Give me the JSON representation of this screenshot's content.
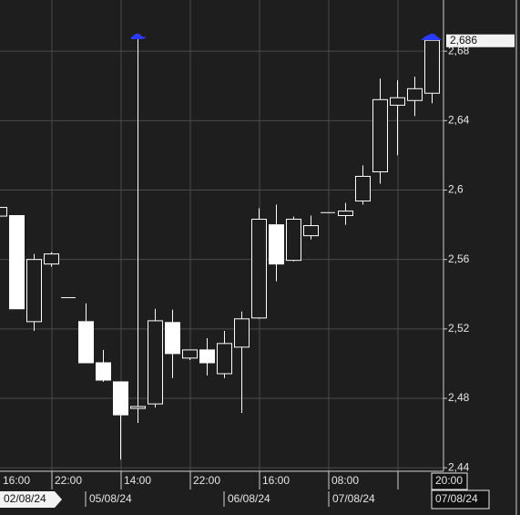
{
  "chart_data": {
    "type": "candlestick",
    "open": [
      2.585,
      2.5853,
      2.5242,
      2.5574,
      2.538,
      2.5242,
      2.5005,
      2.4895,
      2.4742,
      2.4768,
      2.5237,
      2.5032,
      2.5079,
      2.4942,
      2.5095,
      2.5263,
      2.58,
      2.5595,
      2.5737,
      2.587,
      2.5853,
      2.5937,
      2.6105,
      2.6489,
      2.6516,
      2.6558
    ],
    "high": [
      2.59,
      2.5853,
      2.5632,
      2.5642,
      2.538,
      2.5347,
      2.5079,
      2.4895,
      2.6884,
      2.5316,
      2.5311,
      2.5079,
      2.5147,
      2.5189,
      2.53,
      2.5895,
      2.5916,
      2.5847,
      2.5853,
      2.587,
      2.5926,
      2.6142,
      2.6642,
      2.6632,
      2.6653,
      2.6884
    ],
    "low": [
      2.585,
      2.5316,
      2.5189,
      2.5558,
      2.538,
      2.5005,
      2.4895,
      2.4447,
      2.4658,
      2.4747,
      2.4916,
      2.5021,
      2.4932,
      2.4916,
      2.4716,
      2.5258,
      2.5474,
      2.5589,
      2.5716,
      2.587,
      2.58,
      2.5916,
      2.6037,
      2.62,
      2.6426,
      2.65
    ],
    "close": [
      2.59,
      2.5316,
      2.56,
      2.5632,
      2.538,
      2.5005,
      2.4905,
      2.4705,
      2.4753,
      2.5247,
      2.5058,
      2.5079,
      2.5005,
      2.5116,
      2.5258,
      2.5832,
      2.5574,
      2.5832,
      2.5795,
      2.587,
      2.5879,
      2.6079,
      2.6521,
      2.6532,
      2.6584,
      2.6863
    ],
    "ylim": [
      2.438,
      2.7095
    ],
    "yticks": [
      {
        "value": 2.44,
        "label": "2,44"
      },
      {
        "value": 2.48,
        "label": "2,48"
      },
      {
        "value": 2.52,
        "label": "2,52"
      },
      {
        "value": 2.56,
        "label": "2,56"
      },
      {
        "value": 2.6,
        "label": "2,6"
      },
      {
        "value": 2.64,
        "label": "2,64"
      },
      {
        "value": 2.68,
        "label": "2,68"
      }
    ],
    "last_price": {
      "value": 2.686,
      "label": "2,686"
    },
    "time_labels": [
      "16:00",
      "22:00",
      "14:00",
      "22:00",
      "16:00",
      "08:00",
      "20:00"
    ],
    "date_labels": [
      "02/08/24",
      "05/08/24",
      "06/08/24",
      "07/08/24",
      "07/08/24"
    ],
    "grid": true
  }
}
